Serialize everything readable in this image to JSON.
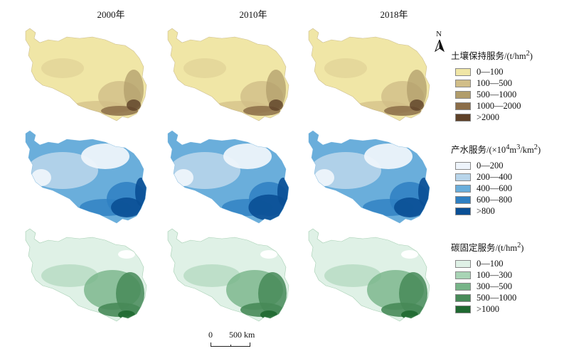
{
  "years": [
    "2000年",
    "2010年",
    "2018年"
  ],
  "legends": [
    {
      "title_html": "土壤保持服务/(t/hm<sup>2</sup>)",
      "items": [
        "0—100",
        "100—500",
        "500—1000",
        "1000—2000",
        ">2000"
      ],
      "colors": [
        "#f0e6a6",
        "#d1be88",
        "#b19d6b",
        "#8b6d48",
        "#5e4128"
      ]
    },
    {
      "title_html": "产水服务/(×10<sup>4</sup>m<sup>3</sup>/km<sup>2</sup>)",
      "items": [
        "0—200",
        "200—400",
        "400—600",
        "600—800",
        ">800"
      ],
      "colors": [
        "#eef4fb",
        "#b8d5ea",
        "#6aaedb",
        "#2e7fc2",
        "#0a4f95"
      ]
    },
    {
      "title_html": "碳固定服务/(t/hm<sup>2</sup>)",
      "items": [
        "0—100",
        "100—300",
        "300—500",
        "500—1000",
        ">1000"
      ],
      "colors": [
        "#dff1e6",
        "#a8d4b5",
        "#77b488",
        "#478a58",
        "#1f6830"
      ]
    }
  ],
  "north": "N",
  "scale": {
    "zero": "0",
    "label": "500 km"
  }
}
